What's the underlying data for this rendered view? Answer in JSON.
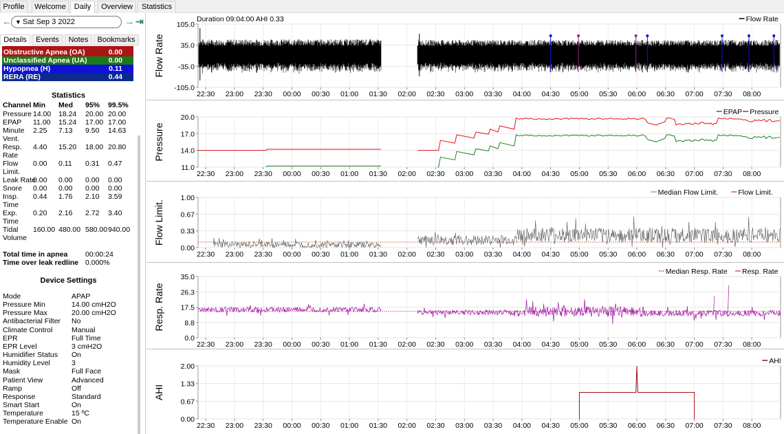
{
  "nav_tabs": [
    {
      "label": "Profile"
    },
    {
      "label": "Welcome"
    },
    {
      "label": "Daily",
      "active": true
    },
    {
      "label": "Overview"
    },
    {
      "label": "Statistics"
    }
  ],
  "date": {
    "label": "Sat Sep 3 2022",
    "prev_icon": "left-arrow-icon",
    "next_icon": "right-arrow-icon",
    "jump_icon": "jump-to-end-icon"
  },
  "sub_tabs": [
    {
      "label": "Details",
      "active": true
    },
    {
      "label": "Events"
    },
    {
      "label": "Notes"
    },
    {
      "label": "Bookmarks"
    }
  ],
  "event_summary": [
    {
      "label": "Obstructive Apnea (OA)",
      "value": "0.00",
      "color": "#ac1418"
    },
    {
      "label": "Unclassified Apnea (UA)",
      "value": "0.00",
      "color": "#1c7a1c"
    },
    {
      "label": "Hypopnea (H)",
      "value": "0.11",
      "color": "#1010d8"
    },
    {
      "label": "RERA (RE)",
      "value": "0.44",
      "color": "#0b2a8c"
    }
  ],
  "statistics": {
    "title": "Statistics",
    "headers": [
      "Channel",
      "Min",
      "Med",
      "95%",
      "99.5%"
    ],
    "rows": [
      [
        "Pressure",
        "14.00",
        "18.24",
        "20.00",
        "20.00"
      ],
      [
        "EPAP",
        "11.00",
        "15.24",
        "17.00",
        "17.00"
      ],
      [
        "Minute Vent.",
        "2.25",
        "7.13",
        "9.50",
        "14.63"
      ],
      [
        "Resp. Rate",
        "4.40",
        "15.20",
        "18.00",
        "20.80"
      ],
      [
        "Flow Limit.",
        "0.00",
        "0.11",
        "0.31",
        "0.47"
      ],
      [
        "Leak Rate",
        "0.00",
        "0.00",
        "0.00",
        "0.00"
      ],
      [
        "Snore",
        "0.00",
        "0.00",
        "0.00",
        "0.00"
      ],
      [
        "Insp. Time",
        "0.44",
        "1.76",
        "2.10",
        "3.59"
      ],
      [
        "Exp. Time",
        "0.20",
        "2.16",
        "2.72",
        "3.40"
      ],
      [
        "Tidal Volume",
        "160.00",
        "480.00",
        "580.00",
        "940.00"
      ]
    ],
    "apnea_time_label": "Total time in apnea",
    "apnea_time": "00:00:24",
    "leak_label": "Time over leak redline",
    "leak_value": "0.000%"
  },
  "device_settings": {
    "title": "Device Settings",
    "rows": [
      [
        "Mode",
        "APAP"
      ],
      [
        "Pressure Min",
        "14.00 cmH2O"
      ],
      [
        "Pressure Max",
        "20.00 cmH2O"
      ],
      [
        "Antibacterial Filter",
        "No"
      ],
      [
        "Climate Control",
        "Manual"
      ],
      [
        "EPR",
        "Full Time"
      ],
      [
        "EPR Level",
        "3 cmH2O"
      ],
      [
        "Humidifier Status",
        "On"
      ],
      [
        "Humidity Level",
        "3"
      ],
      [
        "Mask",
        "Full Face"
      ],
      [
        "Patient View",
        "Advanced"
      ],
      [
        "Ramp",
        "Off"
      ],
      [
        "Response",
        "Standard"
      ],
      [
        "Smart Start",
        "On"
      ],
      [
        "Temperature",
        "15 ºC"
      ],
      [
        "Temperature Enable",
        "On"
      ]
    ]
  },
  "header_text": "Duration 09:04:00 AHI 0.33",
  "time_ticks": [
    "22:30",
    "23:00",
    "23:30",
    "00:00",
    "00:30",
    "01:00",
    "01:30",
    "02:00",
    "02:30",
    "03:00",
    "03:30",
    "04:00",
    "04:30",
    "05:00",
    "05:30",
    "06:00",
    "06:30",
    "07:00",
    "07:30",
    "08:00"
  ],
  "graphs": [
    {
      "id": "flow",
      "ylabel": "Flow Rate",
      "yticks": [
        "105.0",
        "35.0",
        "-35.0",
        "-105.0"
      ],
      "legend": [
        "Flow Rate"
      ],
      "colors": {
        "line": "#000000",
        "events": "#1010d8",
        "events2": "#9a1c8a"
      }
    },
    {
      "id": "pressure",
      "ylabel": "Pressure",
      "yticks": [
        "20.0",
        "17.0",
        "14.0",
        "11.0"
      ],
      "legend": [
        "EPAP",
        "Pressure"
      ],
      "colors": {
        "EPAP": "#14821e",
        "Pressure": "#e01414"
      }
    },
    {
      "id": "flowlim",
      "ylabel": "Flow Limit.",
      "yticks": [
        "1.00",
        "0.67",
        "0.33",
        "0.00"
      ],
      "legend": [
        "Median Flow Limit.",
        "Flow Limit."
      ],
      "colors": {
        "median": "#c06040",
        "line": "#555555"
      }
    },
    {
      "id": "resp",
      "ylabel": "Resp. Rate",
      "yticks": [
        "35.0",
        "26.3",
        "17.5",
        "8.8",
        "0.0"
      ],
      "legend": [
        "Median Resp. Rate",
        "Resp. Rate"
      ],
      "colors": {
        "median": "#e0506a",
        "line": "#a010a0"
      }
    },
    {
      "id": "ahi",
      "ylabel": "AHI",
      "yticks": [
        "2.00",
        "1.33",
        "0.67",
        "0.00"
      ],
      "legend": [
        "AHI"
      ],
      "colors": {
        "line": "#a01010"
      }
    }
  ],
  "chart_data": [
    {
      "type": "line",
      "title": "",
      "ylabel": "Flow Rate",
      "ylim": [
        -105,
        105
      ],
      "x_range": [
        "22:22",
        "08:30"
      ],
      "gaps": [
        [
          "01:33",
          "02:11"
        ]
      ],
      "series": [
        {
          "name": "Flow Rate",
          "values": "continuous oscillation about 0, typical amplitude ±35"
        }
      ]
    },
    {
      "type": "line",
      "ylabel": "Pressure",
      "ylim": [
        11,
        20
      ],
      "series": [
        {
          "name": "Pressure",
          "x": [
            "22:22",
            "23:33",
            "01:33",
            "02:32",
            "02:40",
            "03:45",
            "04:00",
            "08:30"
          ],
          "values": [
            14.0,
            14.0,
            14.0,
            14.0,
            16.0,
            18.5,
            20.0,
            19.5
          ]
        },
        {
          "name": "EPAP",
          "x": [
            "23:33",
            "01:33",
            "02:32",
            "02:40",
            "03:45",
            "04:00",
            "08:30"
          ],
          "values": [
            11.0,
            11.0,
            11.0,
            13.0,
            15.5,
            17.0,
            16.5
          ]
        }
      ]
    },
    {
      "type": "line",
      "ylabel": "Flow Limit.",
      "ylim": [
        0,
        1
      ],
      "series": [
        {
          "name": "Median Flow Limit.",
          "values": [
            0.11
          ]
        },
        {
          "name": "Flow Limit.",
          "values": "noisy 0.00–0.67"
        }
      ]
    },
    {
      "type": "line",
      "ylabel": "Resp. Rate",
      "ylim": [
        0,
        35
      ],
      "series": [
        {
          "name": "Median Resp. Rate",
          "values": [
            15.2
          ]
        },
        {
          "name": "Resp. Rate",
          "values": "noisy 8.8–26.3"
        }
      ]
    },
    {
      "type": "line",
      "ylabel": "AHI",
      "ylim": [
        0,
        2
      ],
      "series": [
        {
          "name": "AHI",
          "x": [
            "05:00",
            "06:00",
            "06:00",
            "06:01",
            "07:00"
          ],
          "values": [
            1.0,
            1.0,
            2.0,
            1.0,
            1.0
          ]
        }
      ]
    }
  ]
}
